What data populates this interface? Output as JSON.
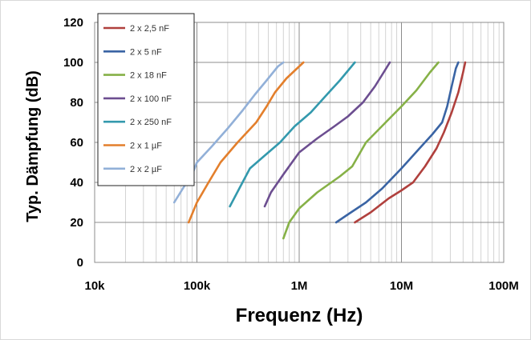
{
  "chart_data": {
    "type": "line",
    "title": "",
    "xlabel": "Frequenz (Hz)",
    "ylabel": "Typ. Dämpfung (dB)",
    "xscale": "log",
    "xlim": [
      10000,
      100000000
    ],
    "ylim": [
      0,
      120
    ],
    "x_tick_labels": [
      "10k",
      "100k",
      "1M",
      "10M",
      "100M"
    ],
    "y_tick_labels": [
      "0",
      "20",
      "40",
      "60",
      "80",
      "100",
      "120"
    ],
    "grid": true,
    "legend_position": "top-left",
    "series": [
      {
        "name": "2 x 2,5 nF",
        "color": "#b0403d",
        "points": [
          [
            3500000,
            20
          ],
          [
            5000000,
            25
          ],
          [
            7500000,
            32
          ],
          [
            10000000,
            36
          ],
          [
            13000000,
            40
          ],
          [
            17000000,
            48
          ],
          [
            22000000,
            57
          ],
          [
            26000000,
            65
          ],
          [
            31000000,
            75
          ],
          [
            36000000,
            85
          ],
          [
            40000000,
            95
          ],
          [
            42000000,
            100
          ]
        ]
      },
      {
        "name": "2 x 5 nF",
        "color": "#3a64a4",
        "points": [
          [
            2300000,
            20
          ],
          [
            3000000,
            24
          ],
          [
            4500000,
            30
          ],
          [
            6500000,
            37
          ],
          [
            10000000,
            47
          ],
          [
            15000000,
            57
          ],
          [
            20000000,
            64
          ],
          [
            25000000,
            70
          ],
          [
            28000000,
            78
          ],
          [
            31000000,
            88
          ],
          [
            34000000,
            97
          ],
          [
            36000000,
            100
          ]
        ]
      },
      {
        "name": "2 x 18 nF",
        "color": "#86b147",
        "points": [
          [
            700000,
            12
          ],
          [
            800000,
            20
          ],
          [
            1000000,
            27
          ],
          [
            1500000,
            35
          ],
          [
            2500000,
            43
          ],
          [
            3300000,
            48
          ],
          [
            4500000,
            60
          ],
          [
            7000000,
            70
          ],
          [
            10000000,
            78
          ],
          [
            14000000,
            86
          ],
          [
            19000000,
            95
          ],
          [
            23000000,
            100
          ]
        ]
      },
      {
        "name": "2 x 100 nF",
        "color": "#6c4e90",
        "points": [
          [
            460000,
            28
          ],
          [
            530000,
            35
          ],
          [
            700000,
            44
          ],
          [
            1000000,
            55
          ],
          [
            1500000,
            62
          ],
          [
            2200000,
            68
          ],
          [
            3000000,
            73
          ],
          [
            4200000,
            80
          ],
          [
            5500000,
            88
          ],
          [
            6700000,
            95
          ],
          [
            7700000,
            100
          ]
        ]
      },
      {
        "name": "2 x 250 nF",
        "color": "#3399ad",
        "points": [
          [
            210000,
            28
          ],
          [
            260000,
            37
          ],
          [
            330000,
            47
          ],
          [
            450000,
            53
          ],
          [
            650000,
            60
          ],
          [
            900000,
            68
          ],
          [
            1300000,
            75
          ],
          [
            1800000,
            83
          ],
          [
            2500000,
            91
          ],
          [
            3500000,
            100
          ]
        ]
      },
      {
        "name": "2 x 1 µF",
        "color": "#e37f2c",
        "points": [
          [
            83000,
            20
          ],
          [
            100000,
            30
          ],
          [
            130000,
            40
          ],
          [
            170000,
            50
          ],
          [
            250000,
            60
          ],
          [
            380000,
            70
          ],
          [
            480000,
            78
          ],
          [
            580000,
            85
          ],
          [
            750000,
            92
          ],
          [
            1100000,
            100
          ]
        ]
      },
      {
        "name": "2 x 2 µF",
        "color": "#92b0d8",
        "points": [
          [
            60000,
            30
          ],
          [
            75000,
            38
          ],
          [
            90000,
            44
          ],
          [
            100000,
            50
          ],
          [
            140000,
            58
          ],
          [
            200000,
            67
          ],
          [
            280000,
            76
          ],
          [
            370000,
            84
          ],
          [
            480000,
            91
          ],
          [
            620000,
            98
          ],
          [
            700000,
            100
          ]
        ]
      }
    ]
  }
}
